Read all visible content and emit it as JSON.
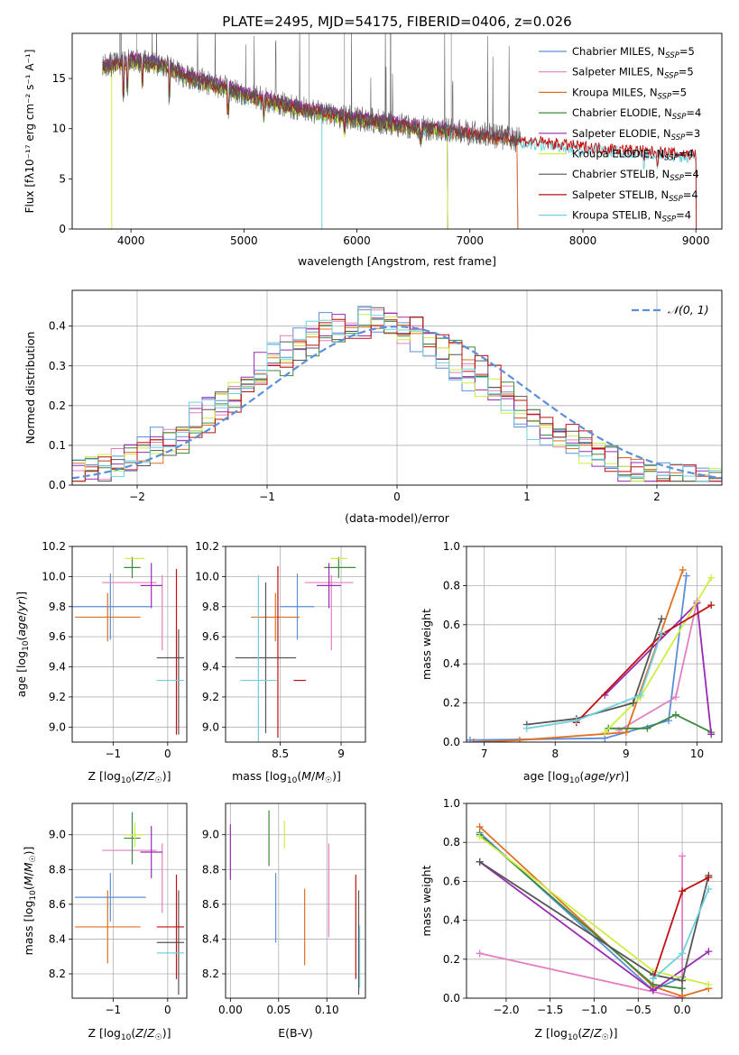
{
  "title": "PLATE=2495, MJD=54175, FIBERID=0406, z=0.026",
  "colors": {
    "chabrier_miles": "#5b8fd9",
    "salpeter_miles": "#e27fbf",
    "kroupa_miles": "#e07020",
    "chabrier_elodie": "#3c8a3c",
    "salpeter_elodie": "#9a2ab5",
    "kroupa_elodie": "#ccee44",
    "chabrier_stelib": "#555555",
    "salpeter_stelib": "#c01010",
    "kroupa_stelib": "#70d0dd",
    "normal": "#5b8fd9"
  },
  "chart_data": [
    {
      "id": "spectrum",
      "type": "line",
      "xlabel": "wavelength [Angstrom, rest frame]",
      "ylabel": "Flux [fλ10⁻¹⁷ erg cm⁻² s⁻¹ A⁻¹]",
      "xlim": [
        3480,
        9230
      ],
      "ylim": [
        0,
        19.5
      ],
      "xticks": [
        4000,
        5000,
        6000,
        7000,
        8000,
        9000
      ],
      "yticks": [
        0,
        5,
        10,
        15
      ],
      "legend_position": "top-right",
      "legend": [
        {
          "key": "chabrier_miles",
          "label": "Chabrier MILES, N",
          "sub": "SSP",
          "tail": "=5"
        },
        {
          "key": "salpeter_miles",
          "label": "Salpeter MILES, N",
          "sub": "SSP",
          "tail": "=5"
        },
        {
          "key": "kroupa_miles",
          "label": "Kroupa MILES, N",
          "sub": "SSP",
          "tail": "=5"
        },
        {
          "key": "chabrier_elodie",
          "label": "Chabrier ELODIE, N",
          "sub": "SSP",
          "tail": "=4"
        },
        {
          "key": "salpeter_elodie",
          "label": "Salpeter ELODIE, N",
          "sub": "SSP",
          "tail": "=3"
        },
        {
          "key": "kroupa_elodie",
          "label": "Kroupa ELODIE, N",
          "sub": "SSP",
          "tail": "=4"
        },
        {
          "key": "chabrier_stelib",
          "label": "Chabrier STELIB, N",
          "sub": "SSP",
          "tail": "=4"
        },
        {
          "key": "salpeter_stelib",
          "label": "Salpeter STELIB, N",
          "sub": "SSP",
          "tail": "=4"
        },
        {
          "key": "kroupa_stelib",
          "label": "Kroupa STELIB, N",
          "sub": "SSP",
          "tail": "=4"
        }
      ],
      "continuum": [
        [
          3750,
          16.2
        ],
        [
          4000,
          16.8
        ],
        [
          4300,
          16.3
        ],
        [
          4500,
          15.2
        ],
        [
          4850,
          14.0
        ],
        [
          5000,
          13.4
        ],
        [
          5500,
          12.0
        ],
        [
          6000,
          11.0
        ],
        [
          6500,
          10.2
        ],
        [
          7000,
          9.6
        ],
        [
          7500,
          8.8
        ],
        [
          8000,
          8.2
        ],
        [
          8500,
          7.8
        ],
        [
          9000,
          7.4
        ]
      ],
      "model_ranges": {
        "chabrier_miles": [
          3750,
          7420
        ],
        "salpeter_miles": [
          3750,
          7420
        ],
        "kroupa_miles": [
          3750,
          7420
        ],
        "chabrier_elodie": [
          3750,
          6800
        ],
        "salpeter_elodie": [
          3750,
          6800
        ],
        "kroupa_elodie": [
          3750,
          6800
        ],
        "chabrier_stelib": [
          3750,
          9000
        ],
        "salpeter_stelib": [
          3750,
          9000
        ],
        "kroupa_stelib": [
          3750,
          9000
        ]
      }
    },
    {
      "id": "residuals",
      "type": "line",
      "xlabel": "(data-model)/error",
      "ylabel": "Normed distribution",
      "xlim": [
        -2.5,
        2.5
      ],
      "ylim": [
        0,
        0.49
      ],
      "xticks": [
        -2,
        -1,
        0,
        1,
        2
      ],
      "yticks": [
        0.0,
        0.1,
        0.2,
        0.3,
        0.4
      ],
      "legend_position": "top-right",
      "legend": [
        {
          "key": "normal",
          "label": "𝒩(0, 1)"
        }
      ]
    },
    {
      "id": "age_vs_Z",
      "type": "scatter",
      "xlabel": "Z [log10(Z/Z☉)]",
      "ylabel": "age [log10(age/yr)]",
      "xlim": [
        -1.75,
        0.35
      ],
      "ylim": [
        8.9,
        10.2
      ],
      "xticks": [
        -1,
        0
      ],
      "yticks": [
        9.0,
        9.2,
        9.4,
        9.6,
        9.8,
        10.0,
        10.2
      ],
      "points": [
        {
          "key": "chabrier_miles",
          "x": -1.05,
          "xerr": 0.75,
          "y": 9.8,
          "yerr": 0.22
        },
        {
          "key": "salpeter_miles",
          "x": -0.7,
          "xerr": 0.5,
          "y": 9.96,
          "yerr": 0.0
        },
        {
          "key": "salpeter_miles",
          "x": -0.1,
          "xerr": 0.0,
          "y": 9.76,
          "yerr": 0.25
        },
        {
          "key": "kroupa_miles",
          "x": -1.1,
          "xerr": 0.6,
          "y": 9.73,
          "yerr": 0.16
        },
        {
          "key": "chabrier_elodie",
          "x": -0.65,
          "xerr": 0.15,
          "y": 10.06,
          "yerr": 0.07
        },
        {
          "key": "salpeter_elodie",
          "x": -0.3,
          "xerr": 0.2,
          "y": 9.94,
          "yerr": 0.15
        },
        {
          "key": "kroupa_elodie",
          "x": -0.6,
          "xerr": 0.18,
          "y": 10.12,
          "yerr": 0.0
        },
        {
          "key": "chabrier_stelib",
          "x": 0.05,
          "xerr": 0.25,
          "y": 9.46,
          "yerr": 0.0
        },
        {
          "key": "chabrier_stelib",
          "x": 0.2,
          "xerr": 0.0,
          "y": 9.3,
          "yerr": 0.35
        },
        {
          "key": "salpeter_stelib",
          "x": 0.16,
          "xerr": 0.0,
          "y": 9.5,
          "yerr": 0.55
        },
        {
          "key": "kroupa_stelib",
          "x": 0.05,
          "xerr": 0.25,
          "y": 9.31,
          "yerr": 0.0
        }
      ]
    },
    {
      "id": "age_vs_mass",
      "type": "scatter",
      "xlabel": "mass [log10(M/M☉)]",
      "ylabel": "",
      "xlim": [
        8.05,
        9.2
      ],
      "ylim": [
        8.9,
        10.2
      ],
      "xticks": [
        8.5,
        9.0
      ],
      "yticks": [
        9.0,
        9.2,
        9.4,
        9.6,
        9.8,
        10.0,
        10.2
      ],
      "points": [
        {
          "key": "chabrier_miles",
          "x": 8.64,
          "xerr": 0.14,
          "y": 9.8,
          "yerr": 0.22
        },
        {
          "key": "salpeter_miles",
          "x": 8.9,
          "xerr": 0.2,
          "y": 9.96,
          "yerr": 0.0
        },
        {
          "key": "salpeter_miles",
          "x": 8.92,
          "xerr": 0.0,
          "y": 9.76,
          "yerr": 0.25
        },
        {
          "key": "kroupa_miles",
          "x": 8.46,
          "xerr": 0.2,
          "y": 9.73,
          "yerr": 0.16
        },
        {
          "key": "chabrier_elodie",
          "x": 8.98,
          "xerr": 0.0,
          "y": 10.06,
          "yerr": 0.07
        },
        {
          "key": "chabrier_elodie",
          "x": 8.99,
          "xerr": 0.13,
          "y": 10.06,
          "yerr": 0.0
        },
        {
          "key": "salpeter_elodie",
          "x": 8.9,
          "xerr": 0.1,
          "y": 9.94,
          "yerr": 0.15
        },
        {
          "key": "kroupa_elodie",
          "x": 8.98,
          "xerr": 0.07,
          "y": 10.12,
          "yerr": 0.0
        },
        {
          "key": "chabrier_stelib",
          "x": 8.38,
          "xerr": 0.25,
          "y": 9.46,
          "yerr": 0.5
        },
        {
          "key": "salpeter_stelib",
          "x": 8.48,
          "xerr": 0.0,
          "y": 9.5,
          "yerr": 0.57
        },
        {
          "key": "salpeter_stelib",
          "x": 8.66,
          "xerr": 0.05,
          "y": 9.31,
          "yerr": 0.0
        },
        {
          "key": "kroupa_stelib",
          "x": 8.32,
          "xerr": 0.15,
          "y": 9.31,
          "yerr": 0.7
        }
      ]
    },
    {
      "id": "weight_vs_age",
      "type": "line",
      "xlabel": "age [log10(age/yr)]",
      "ylabel": "mass weight",
      "xlim": [
        6.75,
        10.35
      ],
      "ylim": [
        0,
        1.0
      ],
      "xticks": [
        7,
        8,
        9,
        10
      ],
      "yticks": [
        0.0,
        0.2,
        0.4,
        0.6,
        0.8,
        1.0
      ],
      "series": [
        {
          "key": "chabrier_miles",
          "x": [
            6.8,
            8.7,
            9.6,
            9.85
          ],
          "y": [
            0.01,
            0.02,
            0.11,
            0.85
          ]
        },
        {
          "key": "salpeter_miles",
          "x": [
            8.9,
            9.7,
            10.0
          ],
          "y": [
            0.06,
            0.23,
            0.72
          ]
        },
        {
          "key": "kroupa_miles",
          "x": [
            6.85,
            7.5,
            9.0,
            9.8
          ],
          "y": [
            0.0,
            0.01,
            0.05,
            0.88
          ]
        },
        {
          "key": "chabrier_elodie",
          "x": [
            8.75,
            9.3,
            9.7,
            10.2
          ],
          "y": [
            0.07,
            0.07,
            0.14,
            0.05
          ]
        },
        {
          "key": "salpeter_elodie",
          "x": [
            8.7,
            10.0,
            10.2
          ],
          "y": [
            0.24,
            0.71,
            0.04
          ]
        },
        {
          "key": "kroupa_elodie",
          "x": [
            8.7,
            9.2,
            10.2
          ],
          "y": [
            0.05,
            0.23,
            0.84
          ]
        },
        {
          "key": "chabrier_stelib",
          "x": [
            7.6,
            8.3,
            9.1,
            9.5
          ],
          "y": [
            0.09,
            0.12,
            0.2,
            0.63
          ]
        },
        {
          "key": "salpeter_stelib",
          "x": [
            8.3,
            9.5,
            10.2
          ],
          "y": [
            0.1,
            0.55,
            0.7
          ]
        },
        {
          "key": "kroupa_stelib",
          "x": [
            7.6,
            8.3,
            9.2,
            9.5
          ],
          "y": [
            0.07,
            0.11,
            0.24,
            0.56
          ]
        }
      ]
    },
    {
      "id": "mass_vs_Z",
      "type": "scatter",
      "xlabel": "Z [log10(Z/Z☉)]",
      "ylabel": "mass [log10(M/M☉)]",
      "xlim": [
        -1.75,
        0.35
      ],
      "ylim": [
        8.06,
        9.18
      ],
      "xticks": [
        -1,
        0
      ],
      "yticks": [
        8.2,
        8.4,
        8.6,
        8.8,
        9.0
      ],
      "points": [
        {
          "key": "chabrier_miles",
          "x": -1.05,
          "xerr": 0.65,
          "y": 8.64,
          "yerr": 0.14
        },
        {
          "key": "salpeter_miles",
          "x": -0.7,
          "xerr": 0.5,
          "y": 8.91,
          "yerr": 0.0
        },
        {
          "key": "salpeter_miles",
          "x": -0.1,
          "xerr": 0.0,
          "y": 8.75,
          "yerr": 0.2
        },
        {
          "key": "kroupa_miles",
          "x": -1.1,
          "xerr": 0.6,
          "y": 8.47,
          "yerr": 0.21
        },
        {
          "key": "chabrier_elodie",
          "x": -0.65,
          "xerr": 0.15,
          "y": 8.98,
          "yerr": 0.15
        },
        {
          "key": "salpeter_elodie",
          "x": -0.3,
          "xerr": 0.2,
          "y": 8.9,
          "yerr": 0.15
        },
        {
          "key": "kroupa_elodie",
          "x": -0.6,
          "xerr": 0.18,
          "y": 9.0,
          "yerr": 0.07
        },
        {
          "key": "chabrier_stelib",
          "x": 0.05,
          "xerr": 0.25,
          "y": 8.38,
          "yerr": 0.0
        },
        {
          "key": "chabrier_stelib",
          "x": 0.2,
          "xerr": 0.0,
          "y": 8.38,
          "yerr": 0.3
        },
        {
          "key": "salpeter_stelib",
          "x": 0.16,
          "xerr": 0.0,
          "y": 8.47,
          "yerr": 0.3
        },
        {
          "key": "salpeter_stelib",
          "x": 0.05,
          "xerr": 0.25,
          "y": 8.47,
          "yerr": 0.0
        },
        {
          "key": "kroupa_stelib",
          "x": 0.05,
          "xerr": 0.25,
          "y": 8.32,
          "yerr": 0.0
        }
      ]
    },
    {
      "id": "mass_vs_ebv",
      "type": "scatter",
      "xlabel": "E(B-V)",
      "ylabel": "",
      "xlim": [
        -0.005,
        0.14
      ],
      "ylim": [
        8.06,
        9.18
      ],
      "xticks": [
        0.0,
        0.05,
        0.1
      ],
      "xtick_labels": [
        "0.00",
        "0.05",
        "0.10"
      ],
      "yticks": [
        8.2,
        8.4,
        8.6,
        8.8,
        9.0
      ],
      "points": [
        {
          "key": "salpeter_elodie",
          "x": 0.0,
          "xerr": 0.0,
          "y": 8.9,
          "yerr": 0.16
        },
        {
          "key": "chabrier_elodie",
          "x": 0.04,
          "xerr": 0.0,
          "y": 8.98,
          "yerr": 0.16
        },
        {
          "key": "kroupa_elodie",
          "x": 0.056,
          "xerr": 0.0,
          "y": 9.0,
          "yerr": 0.08
        },
        {
          "key": "chabrier_miles",
          "x": 0.047,
          "xerr": 0.0,
          "y": 8.58,
          "yerr": 0.2
        },
        {
          "key": "kroupa_miles",
          "x": 0.077,
          "xerr": 0.0,
          "y": 8.47,
          "yerr": 0.22
        },
        {
          "key": "salpeter_miles",
          "x": 0.102,
          "xerr": 0.0,
          "y": 8.68,
          "yerr": 0.27
        },
        {
          "key": "salpeter_stelib",
          "x": 0.13,
          "xerr": 0.0,
          "y": 8.47,
          "yerr": 0.3
        },
        {
          "key": "chabrier_stelib",
          "x": 0.133,
          "xerr": 0.0,
          "y": 8.38,
          "yerr": 0.3
        },
        {
          "key": "kroupa_stelib",
          "x": 0.134,
          "xerr": 0.0,
          "y": 8.3,
          "yerr": 0.18
        }
      ]
    },
    {
      "id": "weight_vs_Z",
      "type": "line",
      "xlabel": "Z [log10(Z/Z☉)]",
      "ylabel": "mass weight",
      "xlim": [
        -2.45,
        0.45
      ],
      "ylim": [
        0,
        1.0
      ],
      "xticks": [
        -2.0,
        -1.5,
        -1.0,
        -0.5,
        0.0
      ],
      "xtick_labels": [
        "−2.0",
        "−1.5",
        "−1.0",
        "−0.5",
        "0.0"
      ],
      "yticks": [
        0.0,
        0.2,
        0.4,
        0.6,
        0.8,
        1.0
      ],
      "series": [
        {
          "key": "chabrier_miles",
          "x": [
            -2.3,
            -0.33,
            0.0,
            0.0
          ],
          "y": [
            0.85,
            0.04,
            0.11,
            0.0
          ]
        },
        {
          "key": "salpeter_miles",
          "x": [
            -2.3,
            0.0,
            0.0
          ],
          "y": [
            0.23,
            0.0,
            0.73
          ]
        },
        {
          "key": "kroupa_miles",
          "x": [
            -2.3,
            -0.33,
            0.0,
            0.3
          ],
          "y": [
            0.88,
            0.06,
            0.01,
            0.05
          ]
        },
        {
          "key": "chabrier_elodie",
          "x": [
            -2.3,
            -0.33,
            0.0
          ],
          "y": [
            0.84,
            0.07,
            0.05
          ]
        },
        {
          "key": "salpeter_elodie",
          "x": [
            -2.3,
            -0.33,
            0.3
          ],
          "y": [
            0.7,
            0.04,
            0.24
          ]
        },
        {
          "key": "kroupa_elodie",
          "x": [
            -2.3,
            -0.33,
            0.3
          ],
          "y": [
            0.83,
            0.14,
            0.07
          ]
        },
        {
          "key": "chabrier_stelib",
          "x": [
            -2.3,
            -0.33,
            0.0,
            0.3
          ],
          "y": [
            0.7,
            0.12,
            0.09,
            0.63
          ]
        },
        {
          "key": "salpeter_stelib",
          "x": [
            -0.33,
            0.0,
            0.3
          ],
          "y": [
            0.1,
            0.55,
            0.62
          ]
        },
        {
          "key": "kroupa_stelib",
          "x": [
            -0.33,
            0.0,
            0.3
          ],
          "y": [
            0.1,
            0.23,
            0.56
          ]
        }
      ]
    }
  ]
}
